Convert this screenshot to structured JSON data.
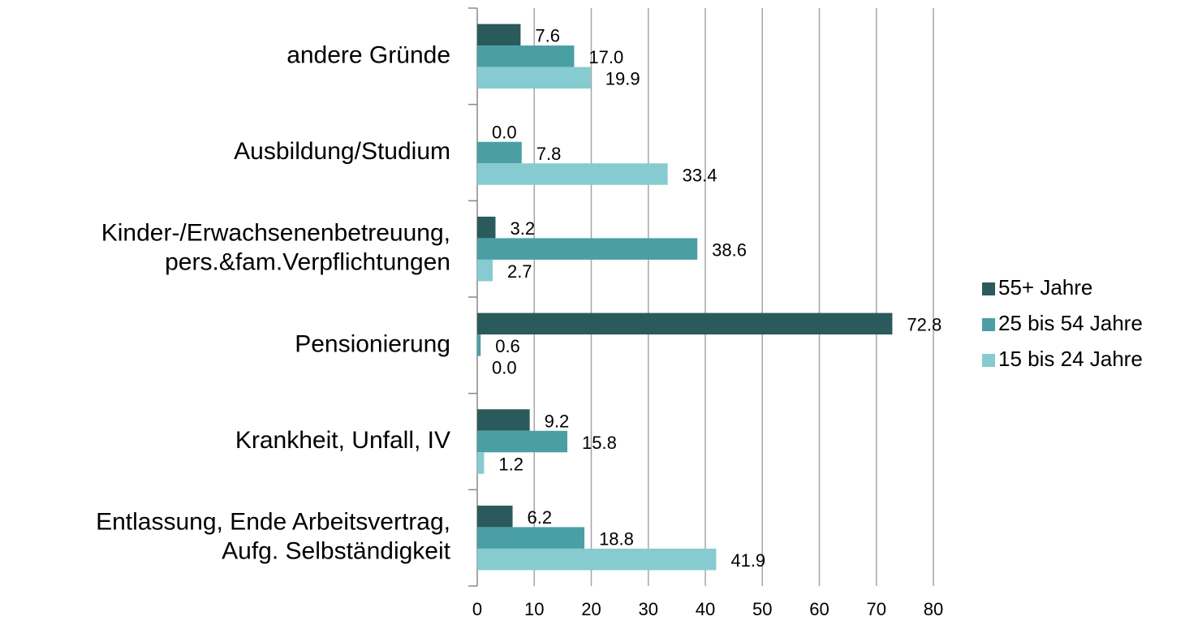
{
  "chart_data": {
    "type": "bar",
    "orientation": "horizontal",
    "categories": [
      [
        "andere Gründe"
      ],
      [
        "Ausbildung/Studium"
      ],
      [
        "Kinder-/Erwachsenenbetreuung,",
        "pers.&fam.Verpflichtungen"
      ],
      [
        "Pensionierung"
      ],
      [
        "Krankheit, Unfall, IV"
      ],
      [
        "Entlassung, Ende Arbeitsvertrag,",
        "Aufg. Selbständigkeit"
      ]
    ],
    "series": [
      {
        "name": "55+ Jahre",
        "color": "#2a5a5c",
        "values": [
          7.6,
          0,
          3.2,
          72.8,
          9.2,
          6.2
        ],
        "value_labels": [
          "7.6",
          "0.0",
          "3.2",
          "72.8",
          "9.2",
          "6.2"
        ]
      },
      {
        "name": "25 bis 54 Jahre",
        "color": "#4a9fa5",
        "values": [
          17,
          7.8,
          38.6,
          0.6,
          15.8,
          18.8
        ],
        "value_labels": [
          "17.0",
          "7.8",
          "38.6",
          "0.6",
          "15.8",
          "18.8"
        ]
      },
      {
        "name": "15 bis 24 Jahre",
        "color": "#86cbd0",
        "values": [
          19.9,
          33.4,
          2.7,
          0,
          1.2,
          41.9
        ],
        "value_labels": [
          "19.9",
          "33.4",
          "2.7",
          "0.0",
          "1.2",
          "41.9"
        ]
      }
    ],
    "xlim": [
      0,
      80
    ],
    "xticks": [
      0,
      10,
      20,
      30,
      40,
      50,
      60,
      70,
      80
    ],
    "grid": true,
    "legend": "right"
  }
}
